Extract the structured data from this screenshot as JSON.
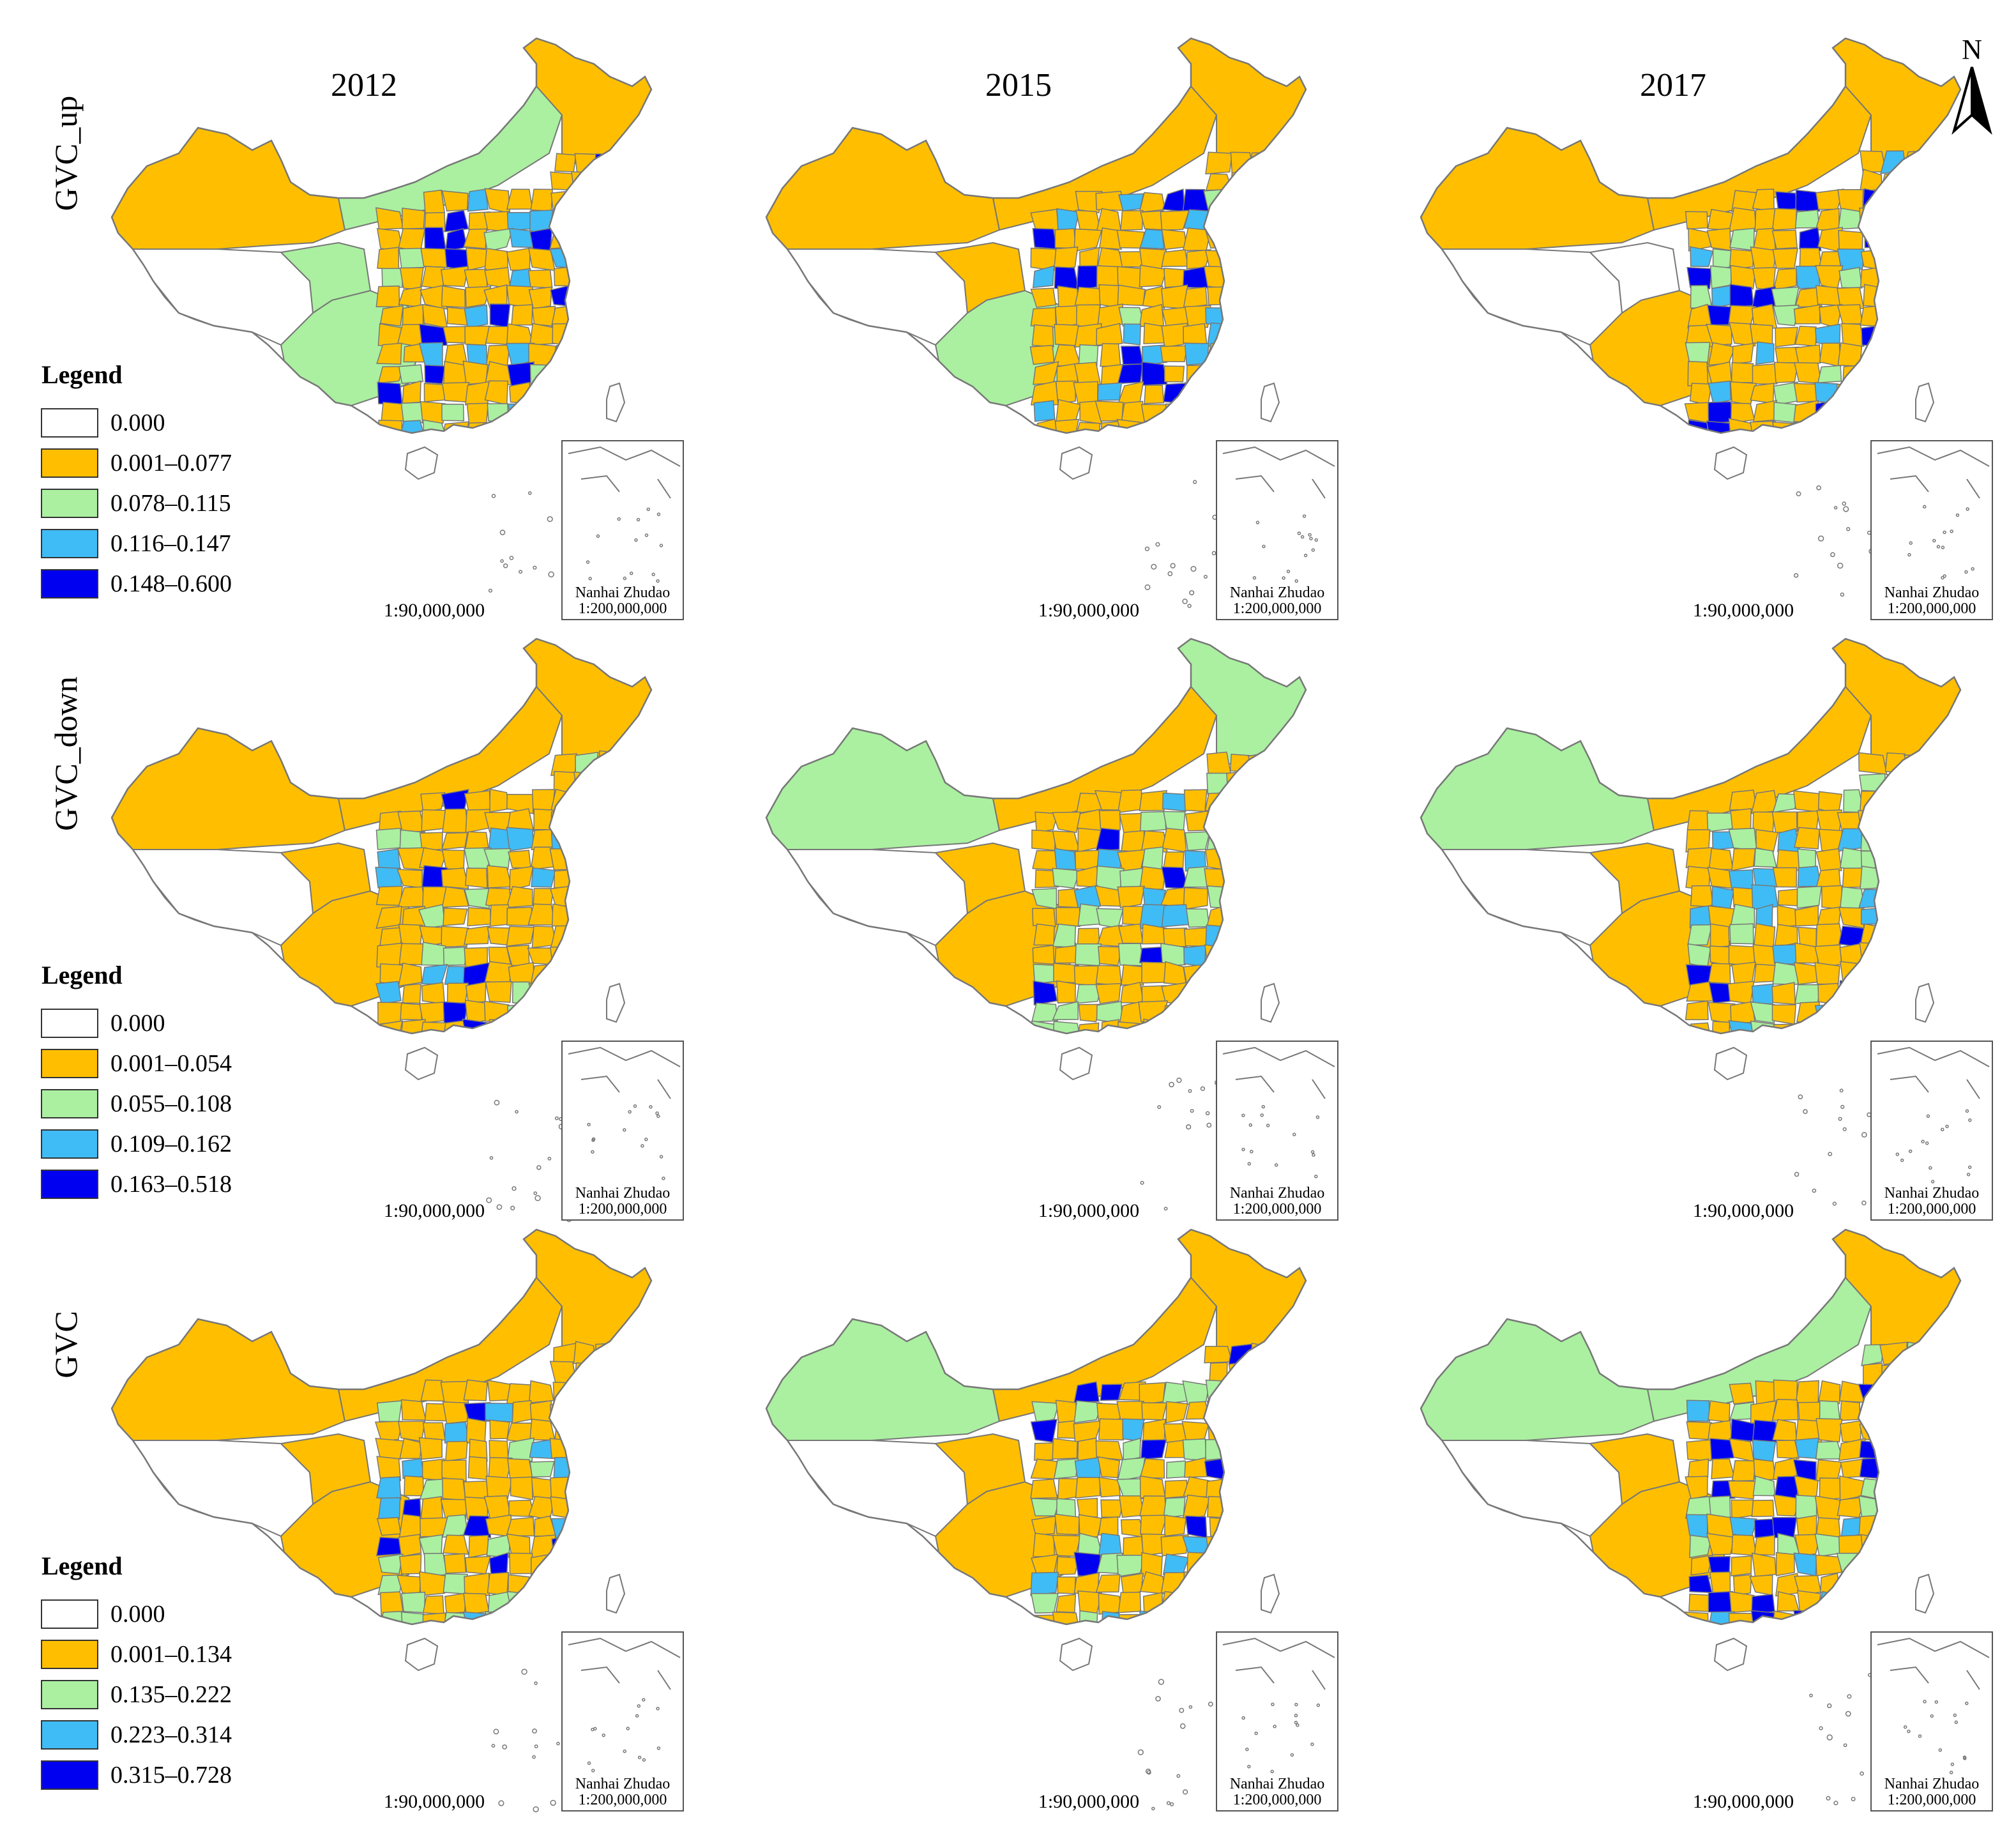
{
  "figure": {
    "years": [
      "2012",
      "2015",
      "2017"
    ],
    "rows": [
      {
        "label": "GVC_up",
        "legend_title": "Legend",
        "classes": [
          "0.000",
          "0.001–0.077",
          "0.078–0.115",
          "0.116–0.147",
          "0.148–0.600"
        ]
      },
      {
        "label": "GVC_down",
        "legend_title": "Legend",
        "classes": [
          "0.000",
          "0.001–0.054",
          "0.055–0.108",
          "0.109–0.162",
          "0.163–0.518"
        ]
      },
      {
        "label": "GVC",
        "legend_title": "Legend",
        "classes": [
          "0.000",
          "0.001–0.134",
          "0.135–0.222",
          "0.223–0.314",
          "0.315–0.728"
        ]
      }
    ],
    "scale_label": "1:90,000,000",
    "inset_title": "Nanhai Zhudao",
    "inset_scale": "1:200,000,000",
    "north_label": "N",
    "class_colors": [
      "#ffffff",
      "#ffbf00",
      "#aaf0a0",
      "#3fbcf5",
      "#0000f0"
    ],
    "outline_color": "#777777"
  }
}
